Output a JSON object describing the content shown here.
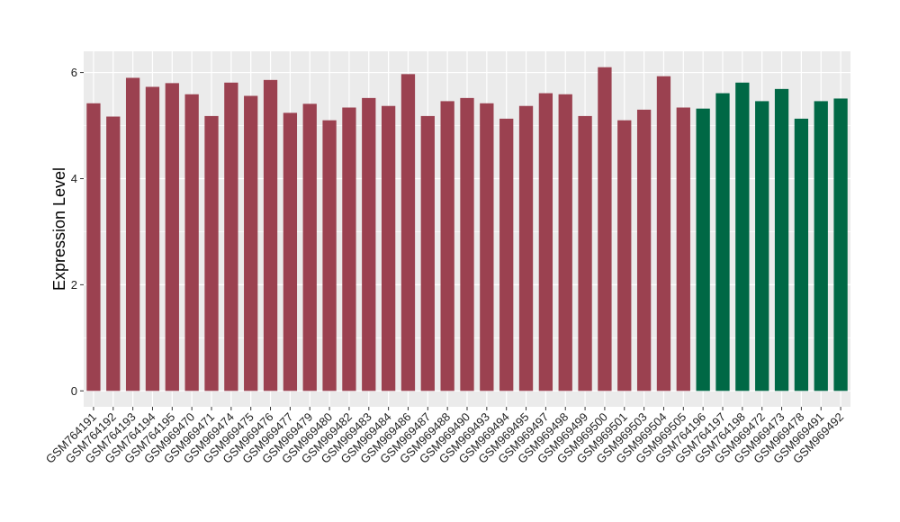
{
  "chart_data": {
    "type": "bar",
    "title": "",
    "xlabel": "",
    "ylabel": "Expression Level",
    "ylim": [
      -0.3,
      6.4
    ],
    "yticks": [
      0,
      2,
      4,
      6
    ],
    "grid": true,
    "colors": {
      "group1": "#9B4150",
      "group2": "#006845",
      "panel": "#EBEBEB"
    },
    "categories": [
      "GSM764191",
      "GSM764192",
      "GSM764193",
      "GSM764194",
      "GSM764195",
      "GSM969470",
      "GSM969471",
      "GSM969474",
      "GSM969475",
      "GSM969476",
      "GSM969477",
      "GSM969479",
      "GSM969480",
      "GSM969482",
      "GSM969483",
      "GSM969484",
      "GSM969486",
      "GSM969487",
      "GSM969488",
      "GSM969490",
      "GSM969493",
      "GSM969494",
      "GSM969495",
      "GSM969497",
      "GSM969498",
      "GSM969499",
      "GSM969500",
      "GSM969501",
      "GSM969503",
      "GSM969504",
      "GSM969505",
      "GSM764196",
      "GSM764197",
      "GSM764198",
      "GSM969472",
      "GSM969473",
      "GSM969478",
      "GSM969491",
      "GSM969492"
    ],
    "values": [
      5.42,
      5.17,
      5.9,
      5.73,
      5.8,
      5.59,
      5.18,
      5.81,
      5.56,
      5.86,
      5.24,
      5.41,
      5.1,
      5.34,
      5.52,
      5.37,
      5.97,
      5.18,
      5.46,
      5.52,
      5.42,
      5.13,
      5.37,
      5.61,
      5.59,
      5.18,
      6.1,
      5.1,
      5.3,
      5.93,
      5.34,
      5.32,
      5.61,
      5.81,
      5.46,
      5.69,
      5.13,
      5.46,
      5.51
    ],
    "groups": [
      1,
      1,
      1,
      1,
      1,
      1,
      1,
      1,
      1,
      1,
      1,
      1,
      1,
      1,
      1,
      1,
      1,
      1,
      1,
      1,
      1,
      1,
      1,
      1,
      1,
      1,
      1,
      1,
      1,
      1,
      1,
      2,
      2,
      2,
      2,
      2,
      2,
      2,
      2
    ]
  }
}
